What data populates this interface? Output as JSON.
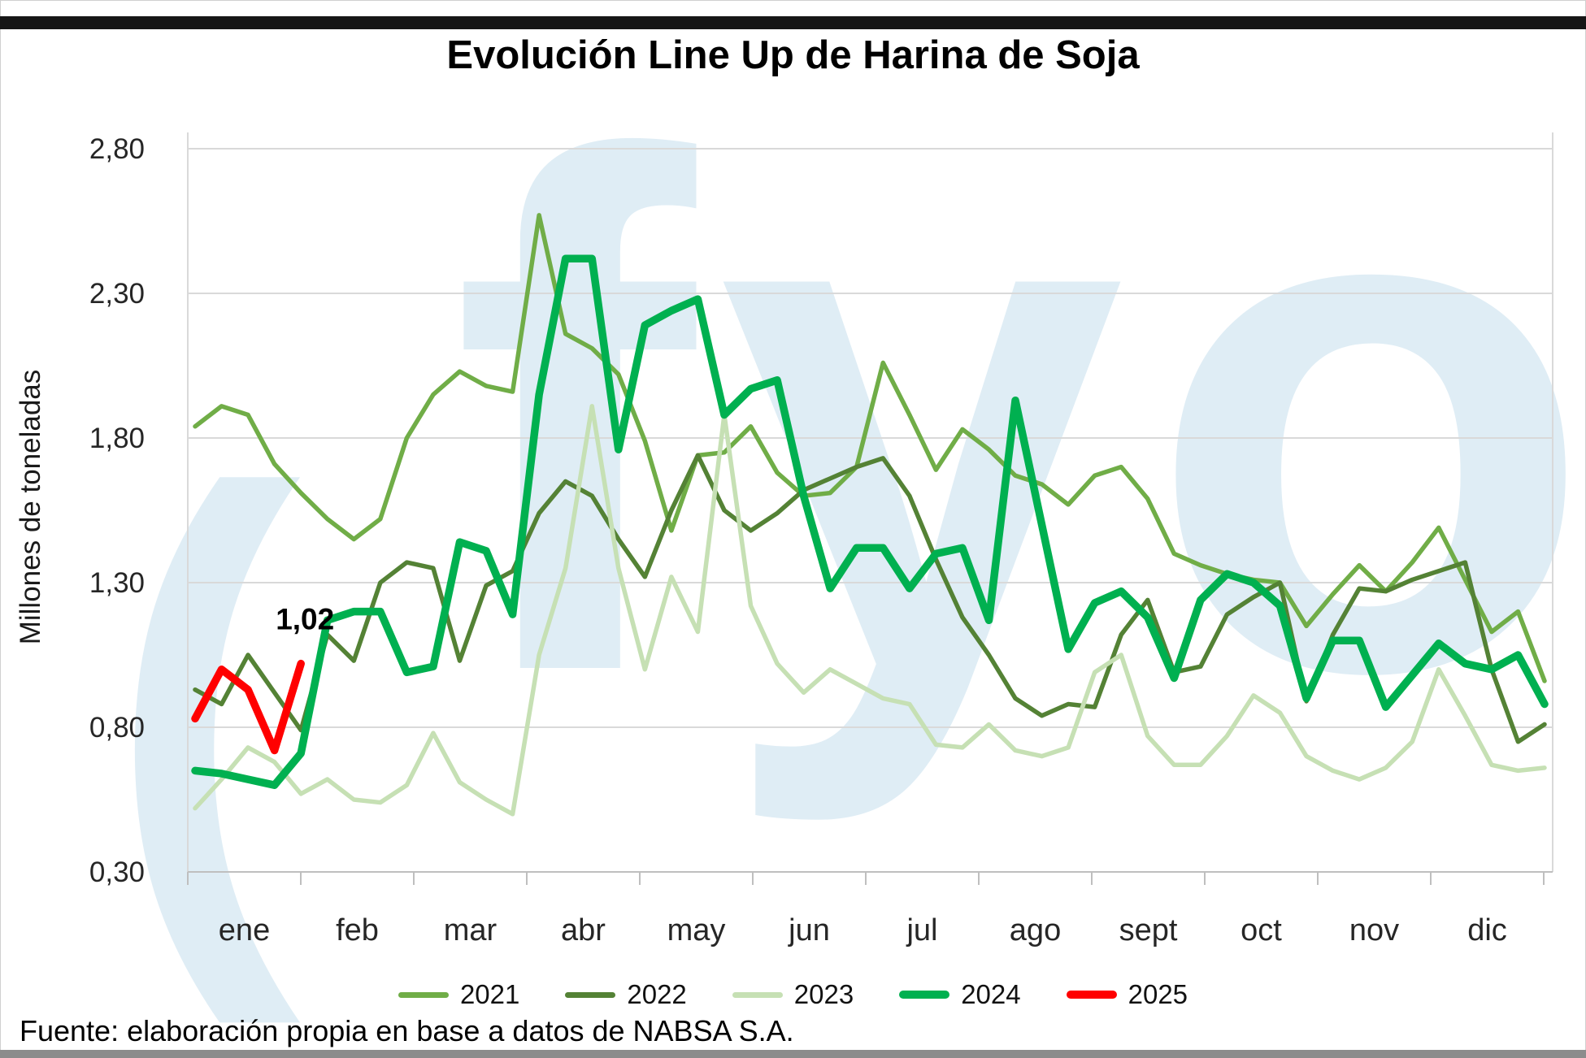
{
  "page": {
    "title": "Evolución Line Up de Harina de Soja",
    "source_note": "Fuente: elaboración propia en base a datos de NABSA S.A."
  },
  "watermark": {
    "text": "fyo",
    "paren": "(",
    "color": "#dfedf5"
  },
  "chart_data": {
    "type": "line",
    "title": "Evolución Line Up de Harina de Soja",
    "xlabel": "",
    "ylabel": "Millones de toneladas",
    "ylim": [
      0.3,
      2.8
    ],
    "grid": "horizontal",
    "legend_position": "bottom",
    "yticks": [
      {
        "value": 2.8,
        "label": "2,80"
      },
      {
        "value": 2.3,
        "label": "2,30"
      },
      {
        "value": 1.8,
        "label": "1,80"
      },
      {
        "value": 1.3,
        "label": "1,30"
      },
      {
        "value": 0.8,
        "label": "0,80"
      },
      {
        "value": 0.3,
        "label": "0,30"
      }
    ],
    "x_axis": {
      "unit": "week",
      "months": [
        "ene",
        "feb",
        "mar",
        "abr",
        "may",
        "jun",
        "jul",
        "ago",
        "sept",
        "oct",
        "nov",
        "dic"
      ]
    },
    "annotation": {
      "text": "1,02",
      "series": "2025",
      "point_index": 4
    },
    "colors": {
      "gridline": "#d9d9d9",
      "axis": "#bfbfbf",
      "tick_label": "#262626"
    },
    "series": [
      {
        "name": "2021",
        "color": "#70ad47",
        "stroke_width": 5.5,
        "values": [
          1.84,
          1.91,
          1.88,
          1.71,
          1.61,
          1.52,
          1.45,
          1.52,
          1.8,
          1.95,
          2.03,
          1.98,
          1.96,
          2.57,
          2.16,
          2.11,
          2.02,
          1.79,
          1.48,
          1.74,
          1.75,
          1.84,
          1.68,
          1.6,
          1.61,
          1.7,
          2.06,
          1.88,
          1.69,
          1.83,
          1.76,
          1.67,
          1.64,
          1.57,
          1.67,
          1.7,
          1.59,
          1.4,
          1.36,
          1.33,
          1.31,
          1.3,
          1.15,
          1.26,
          1.36,
          1.27,
          1.37,
          1.49,
          1.31,
          1.13,
          1.2,
          0.96
        ]
      },
      {
        "name": "2022",
        "color": "#548235",
        "stroke_width": 5.5,
        "values": [
          0.93,
          0.88,
          1.05,
          0.92,
          0.79,
          1.12,
          1.03,
          1.3,
          1.37,
          1.35,
          1.03,
          1.29,
          1.34,
          1.54,
          1.65,
          1.6,
          1.45,
          1.32,
          1.55,
          1.74,
          1.55,
          1.48,
          1.54,
          1.62,
          1.66,
          1.7,
          1.73,
          1.6,
          1.38,
          1.18,
          1.05,
          0.9,
          0.84,
          0.88,
          0.87,
          1.12,
          1.24,
          0.99,
          1.01,
          1.19,
          1.25,
          1.3,
          0.89,
          1.12,
          1.28,
          1.27,
          1.31,
          1.34,
          1.37,
          1.0,
          0.75,
          0.81
        ]
      },
      {
        "name": "2023",
        "color": "#c6e0b4",
        "stroke_width": 5.5,
        "values": [
          0.52,
          0.62,
          0.73,
          0.68,
          0.57,
          0.62,
          0.55,
          0.54,
          0.6,
          0.78,
          0.61,
          0.55,
          0.5,
          1.05,
          1.35,
          1.91,
          1.35,
          1.0,
          1.32,
          1.13,
          1.88,
          1.22,
          1.02,
          0.92,
          1.0,
          0.95,
          0.9,
          0.88,
          0.74,
          0.73,
          0.81,
          0.72,
          0.7,
          0.73,
          0.99,
          1.05,
          0.77,
          0.67,
          0.67,
          0.77,
          0.91,
          0.85,
          0.7,
          0.65,
          0.62,
          0.66,
          0.75,
          1.0,
          0.84,
          0.67,
          0.65,
          0.66
        ]
      },
      {
        "name": "2024",
        "color": "#00b050",
        "stroke_width": 9.5,
        "values": [
          0.65,
          0.64,
          0.62,
          0.6,
          0.71,
          1.17,
          1.2,
          1.2,
          0.99,
          1.01,
          1.44,
          1.41,
          1.19,
          1.95,
          2.42,
          2.42,
          1.76,
          2.19,
          2.24,
          2.28,
          1.88,
          1.97,
          2.0,
          1.6,
          1.28,
          1.42,
          1.42,
          1.28,
          1.4,
          1.42,
          1.17,
          1.93,
          1.5,
          1.07,
          1.23,
          1.27,
          1.18,
          0.97,
          1.24,
          1.33,
          1.3,
          1.22,
          0.9,
          1.1,
          1.1,
          0.87,
          0.98,
          1.09,
          1.02,
          1.0,
          1.05,
          0.88
        ]
      },
      {
        "name": "2025",
        "color": "#ff0000",
        "stroke_width": 9.5,
        "values": [
          0.83,
          1.0,
          0.93,
          0.72,
          1.02
        ]
      }
    ]
  },
  "legend": {
    "items": [
      {
        "label": "2021",
        "color": "#70ad47",
        "thick": false
      },
      {
        "label": "2022",
        "color": "#548235",
        "thick": false
      },
      {
        "label": "2023",
        "color": "#c6e0b4",
        "thick": false
      },
      {
        "label": "2024",
        "color": "#00b050",
        "thick": true
      },
      {
        "label": "2025",
        "color": "#ff0000",
        "thick": true
      }
    ]
  }
}
